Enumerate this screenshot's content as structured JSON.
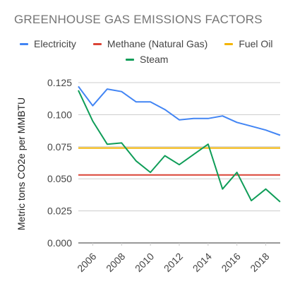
{
  "chart_data": {
    "type": "line",
    "title": "GREENHOUSE GAS EMISSIONS FACTORS",
    "ylabel": "Metric tons CO2e per MMBTU",
    "xlabel": "",
    "x": [
      2005,
      2006,
      2007,
      2008,
      2009,
      2010,
      2011,
      2012,
      2013,
      2014,
      2015,
      2016,
      2017,
      2018,
      2019
    ],
    "xlim": [
      2005,
      2019
    ],
    "ylim": [
      0,
      0.125
    ],
    "y_ticks": [
      "0.000",
      "0.025",
      "0.050",
      "0.075",
      "0.100",
      "0.125"
    ],
    "y_tick_values": [
      0,
      0.025,
      0.05,
      0.075,
      0.1,
      0.125
    ],
    "x_ticks": [
      "2006",
      "2008",
      "2010",
      "2012",
      "2014",
      "2016",
      "2018"
    ],
    "x_tick_values": [
      2006,
      2008,
      2010,
      2012,
      2014,
      2016,
      2018
    ],
    "legend_position": "top",
    "grid": "horizontal",
    "series": [
      {
        "name": "Electricity",
        "color": "#4285f4",
        "values": [
          0.122,
          0.107,
          0.12,
          0.118,
          0.11,
          0.11,
          0.104,
          0.096,
          0.097,
          0.097,
          0.099,
          0.094,
          0.091,
          0.088,
          0.084
        ]
      },
      {
        "name": "Methane (Natural Gas)",
        "color": "#db4437",
        "values": [
          0.053,
          0.053,
          0.053,
          0.053,
          0.053,
          0.053,
          0.053,
          0.053,
          0.053,
          0.053,
          0.053,
          0.053,
          0.053,
          0.053,
          0.053
        ]
      },
      {
        "name": "Fuel Oil",
        "color": "#f4b400",
        "values": [
          0.074,
          0.074,
          0.074,
          0.074,
          0.074,
          0.074,
          0.074,
          0.074,
          0.074,
          0.074,
          0.074,
          0.074,
          0.074,
          0.074,
          0.074
        ]
      },
      {
        "name": "Steam",
        "color": "#0f9d58",
        "values": [
          0.119,
          0.095,
          0.077,
          0.078,
          0.064,
          0.055,
          0.068,
          0.061,
          0.069,
          0.077,
          0.042,
          0.055,
          0.033,
          0.042,
          0.032
        ]
      }
    ]
  }
}
